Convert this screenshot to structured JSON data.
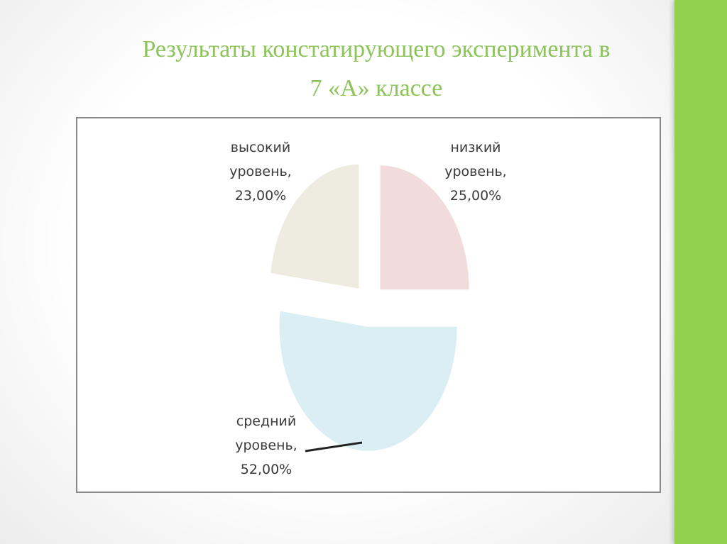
{
  "slide": {
    "title_line1": "Результаты констатирующего эксперимента в",
    "title_line2": "7 «А» классе",
    "accent_color": "#92d050",
    "title_color": "#8cc45a"
  },
  "chart_data": {
    "type": "pie",
    "title": "",
    "slices": [
      {
        "name": "низкий уровень",
        "value": 25.0,
        "label_lines": [
          "низкий",
          "уровень,",
          "25,00%"
        ],
        "color": "#f2dcdb"
      },
      {
        "name": "средний уровень",
        "value": 52.0,
        "label_lines": [
          "средний",
          "уровень,",
          "52,00%"
        ],
        "color": "#dbeef3"
      },
      {
        "name": "высокий уровень",
        "value": 23.0,
        "label_lines": [
          "высокий",
          "уровень,",
          "23,00%"
        ],
        "color": "#eeece1"
      }
    ],
    "legend": "none",
    "exploded": true
  }
}
